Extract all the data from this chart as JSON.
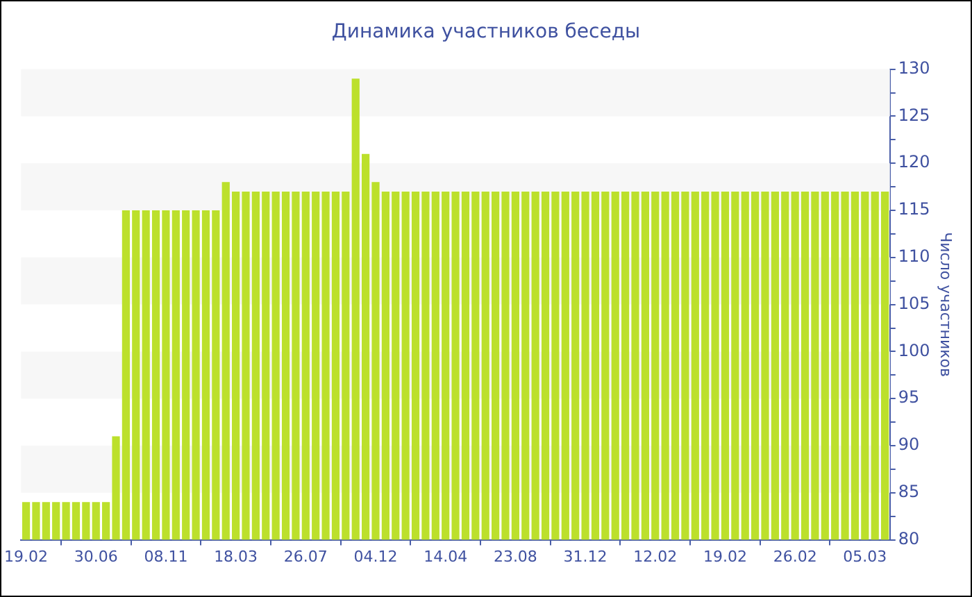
{
  "chart_data": {
    "type": "bar",
    "title": "Динамика участников беседы",
    "ylabel": "Число участников",
    "categories": [
      "19.02",
      null,
      null,
      null,
      null,
      null,
      null,
      "30.06",
      null,
      null,
      null,
      null,
      null,
      null,
      "08.11",
      null,
      null,
      null,
      null,
      null,
      null,
      "18.03",
      null,
      null,
      null,
      null,
      null,
      null,
      "26.07",
      null,
      null,
      null,
      null,
      null,
      null,
      "04.12",
      null,
      null,
      null,
      null,
      null,
      null,
      "14.04",
      null,
      null,
      null,
      null,
      null,
      null,
      "23.08",
      null,
      null,
      null,
      null,
      null,
      null,
      "31.12",
      null,
      null,
      null,
      null,
      null,
      null,
      "12.02",
      null,
      null,
      null,
      null,
      null,
      null,
      "19.02",
      null,
      null,
      null,
      null,
      null,
      null,
      "26.02",
      null,
      null,
      null,
      null,
      null,
      null,
      "05.03",
      null,
      null
    ],
    "values": [
      84,
      84,
      84,
      84,
      84,
      84,
      84,
      84,
      84,
      91,
      115,
      115,
      115,
      115,
      115,
      115,
      115,
      115,
      115,
      115,
      118,
      117,
      117,
      117,
      117,
      117,
      117,
      117,
      117,
      117,
      117,
      117,
      117,
      129,
      121,
      118,
      117,
      117,
      117,
      117,
      117,
      117,
      117,
      117,
      117,
      117,
      117,
      117,
      117,
      117,
      117,
      117,
      117,
      117,
      117,
      117,
      117,
      117,
      117,
      117,
      117,
      117,
      117,
      117,
      117,
      117,
      117,
      117,
      117,
      117,
      117,
      117,
      117,
      117,
      117,
      117,
      117,
      117,
      117,
      117,
      117,
      117,
      117,
      117,
      117,
      117,
      117
    ],
    "color": "#bce02c",
    "ylim": [
      80,
      130
    ],
    "yticks": [
      80,
      {
        "value": 82.5,
        "label": null
      },
      85,
      {
        "value": 87.5,
        "label": null
      },
      90,
      {
        "value": 92.5,
        "label": null
      },
      95,
      {
        "value": 97.5,
        "label": null
      },
      100,
      {
        "value": 102.5,
        "label": null
      },
      105,
      {
        "value": 107.5,
        "label": null
      },
      110,
      {
        "value": 112.5,
        "label": null
      },
      115,
      {
        "value": 117.5,
        "label": null
      },
      120,
      {
        "value": 122.5,
        "label": null
      },
      125,
      {
        "value": 127.5,
        "label": null
      },
      130
    ],
    "bands": [
      {
        "axis": "y",
        "from": 85,
        "to": 90,
        "color": "#f7f7f7"
      },
      {
        "axis": "y",
        "from": 95,
        "to": 100,
        "color": "#f7f7f7"
      },
      {
        "axis": "y",
        "from": 105,
        "to": 110,
        "color": "#f7f7f7"
      },
      {
        "axis": "y",
        "from": 115,
        "to": 120,
        "color": "#f7f7f7"
      },
      {
        "axis": "y",
        "from": 125,
        "to": 130,
        "color": "#f7f7f7"
      }
    ],
    "legend": false
  }
}
